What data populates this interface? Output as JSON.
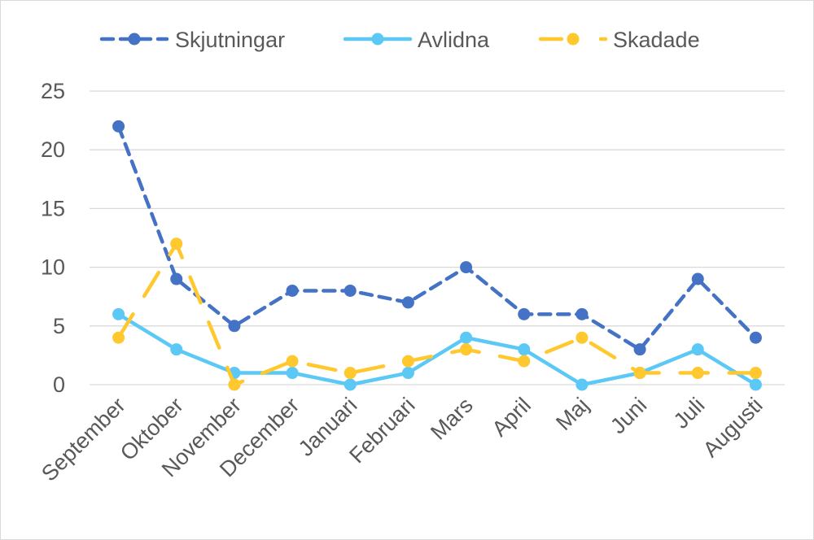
{
  "chart_data": {
    "type": "line",
    "title": "",
    "xlabel": "",
    "ylabel": "",
    "categories": [
      "September",
      "Oktober",
      "November",
      "December",
      "Januari",
      "Februari",
      "Mars",
      "April",
      "Maj",
      "Juni",
      "Juli",
      "Augusti"
    ],
    "ylim": [
      0,
      25
    ],
    "yticks": [
      "0",
      "5",
      "10",
      "15",
      "20",
      "25"
    ],
    "grid": true,
    "legend_position": "top",
    "series": [
      {
        "name": "Skjutningar",
        "values": [
          22,
          9,
          5,
          8,
          8,
          7,
          10,
          6,
          6,
          3,
          9,
          4
        ],
        "color": "#4472C4",
        "dash": "dashed"
      },
      {
        "name": "Avlidna",
        "values": [
          6,
          3,
          1,
          1,
          0,
          1,
          4,
          3,
          0,
          1,
          3,
          0
        ],
        "color": "#5BC8F5",
        "dash": "solid"
      },
      {
        "name": "Skadade",
        "values": [
          4,
          12,
          0,
          2,
          1,
          2,
          3,
          2,
          4,
          1,
          1,
          1
        ],
        "color": "#FFC82E",
        "dash": "long-dash"
      }
    ]
  }
}
